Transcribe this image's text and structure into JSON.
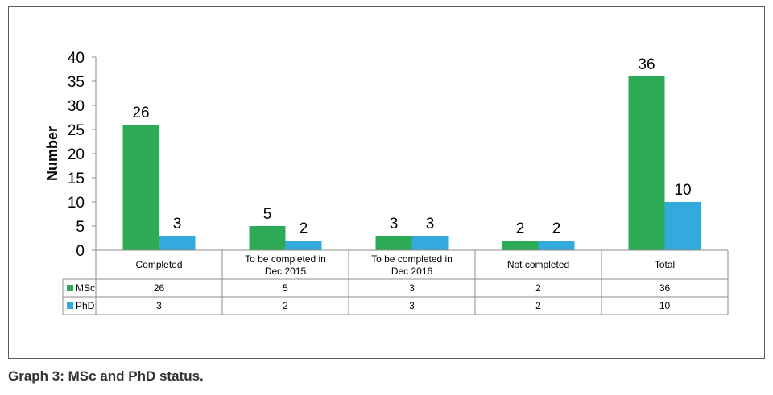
{
  "caption": "Graph 3: MSc and PhD status.",
  "chart_data": {
    "type": "bar",
    "title": "",
    "ylabel": "Number",
    "xlabel": "",
    "ylim": [
      0,
      40
    ],
    "yticks": [
      0,
      5,
      10,
      15,
      20,
      25,
      30,
      35,
      40
    ],
    "categories": [
      [
        "Completed"
      ],
      [
        "To be completed in",
        "Dec 2015"
      ],
      [
        "To be completed in",
        "Dec 2016"
      ],
      [
        "Not completed"
      ],
      [
        "Total"
      ]
    ],
    "series": [
      {
        "name": "MSc",
        "color": "#2daa55",
        "values": [
          26,
          5,
          3,
          2,
          36
        ]
      },
      {
        "name": "PhD",
        "color": "#33aadd",
        "values": [
          3,
          2,
          3,
          2,
          10
        ]
      }
    ],
    "grid": false,
    "legend": "data-table"
  }
}
